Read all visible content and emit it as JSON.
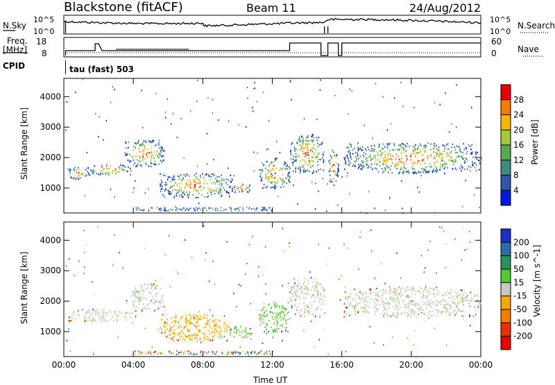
{
  "header": {
    "station": "Blackstone (fitACF)",
    "beam": "Beam 11",
    "date": "24/Aug/2012"
  },
  "status_panels": {
    "nsky_label": "N.Sky",
    "nsky_ticks": [
      "10^5",
      "10^0"
    ],
    "nsearch_label": "N.Search",
    "nsearch_ticks": [
      "10^5",
      "10^0"
    ],
    "freq_label_line1": "Freq.",
    "freq_label_line2": "[MHz]",
    "freq_ticks": [
      "18",
      "8"
    ],
    "nave_label": "Nave",
    "nave_ticks": [
      "60",
      "0"
    ],
    "cpid_label": "CPID",
    "cpid_value": "tau (fast) 503"
  },
  "axes": {
    "ylabel": "Slant Range [km]",
    "xlabel": "Time UT",
    "yticks": [
      "1000",
      "2000",
      "3000",
      "4000"
    ],
    "xticks": [
      "00:00",
      "04:00",
      "08:00",
      "12:00",
      "16:00",
      "20:00",
      "00:00"
    ]
  },
  "chart_data": [
    {
      "type": "heatmap",
      "name": "power-panel",
      "xlabel": "Time UT",
      "ylabel": "Slant Range [km]",
      "xlim": [
        0,
        24
      ],
      "ylim": [
        180,
        4600
      ],
      "colorbar_label": "Power [dB]",
      "colorbar_ticks": [
        "4",
        "8",
        "12",
        "16",
        "20",
        "24",
        "28"
      ],
      "colorbar_colors": [
        "#0018e0",
        "#2f57a8",
        "#3e8a80",
        "#58aa58",
        "#a5c83a",
        "#f5b800",
        "#f47a00",
        "#e80000"
      ],
      "echo_regions": [
        {
          "t0": 0.2,
          "t1": 1.5,
          "r0": 1300,
          "r1": 1700
        },
        {
          "t0": 1.3,
          "t1": 3.9,
          "r0": 1450,
          "r1": 1800
        },
        {
          "t0": 3.5,
          "t1": 5.8,
          "r0": 1700,
          "r1": 2600
        },
        {
          "t0": 5.5,
          "t1": 9.8,
          "r0": 700,
          "r1": 1500
        },
        {
          "t0": 9.5,
          "t1": 10.8,
          "r0": 850,
          "r1": 1150
        },
        {
          "t0": 11.2,
          "t1": 13.0,
          "r0": 1000,
          "r1": 2000
        },
        {
          "t0": 13.0,
          "t1": 15.0,
          "r0": 1500,
          "r1": 2800
        },
        {
          "t0": 15.2,
          "t1": 15.8,
          "r0": 1100,
          "r1": 2300
        },
        {
          "t0": 16.1,
          "t1": 24.0,
          "r0": 1500,
          "r1": 2500
        }
      ]
    },
    {
      "type": "heatmap",
      "name": "velocity-panel",
      "xlabel": "Time UT",
      "ylabel": "Slant Range [km]",
      "xlim": [
        0,
        24
      ],
      "ylim": [
        180,
        4600
      ],
      "colorbar_label": "Velocity [m s^-1]",
      "colorbar_ticks": [
        "200",
        "100",
        "50",
        "15",
        "-15",
        "-50",
        "-100",
        "-200"
      ],
      "colorbar_colors": [
        "#1a2fc8",
        "#2f6ea0",
        "#2e9060",
        "#52c832",
        "#c8c8c0",
        "#f5a800",
        "#f47a00",
        "#e83000",
        "#e80000"
      ],
      "echo_regions": [
        {
          "t0": 0.2,
          "t1": 4.2,
          "r0": 1350,
          "r1": 1750,
          "color": "#c8c8c0"
        },
        {
          "t0": 3.8,
          "t1": 5.8,
          "r0": 1700,
          "r1": 2600,
          "color": "#c8c8c0"
        },
        {
          "t0": 5.5,
          "t1": 9.5,
          "r0": 700,
          "r1": 1600,
          "color": "#f5a800"
        },
        {
          "t0": 9.5,
          "t1": 10.8,
          "r0": 800,
          "r1": 1200,
          "color": "#52c832"
        },
        {
          "t0": 11.2,
          "t1": 13.0,
          "r0": 1000,
          "r1": 2000,
          "color": "#52c832"
        },
        {
          "t0": 13.0,
          "t1": 15.0,
          "r0": 1500,
          "r1": 2800,
          "color": "#c8c8c0"
        },
        {
          "t0": 16.1,
          "t1": 24.0,
          "r0": 1500,
          "r1": 2500,
          "color": "#c8c8c0"
        }
      ]
    }
  ]
}
